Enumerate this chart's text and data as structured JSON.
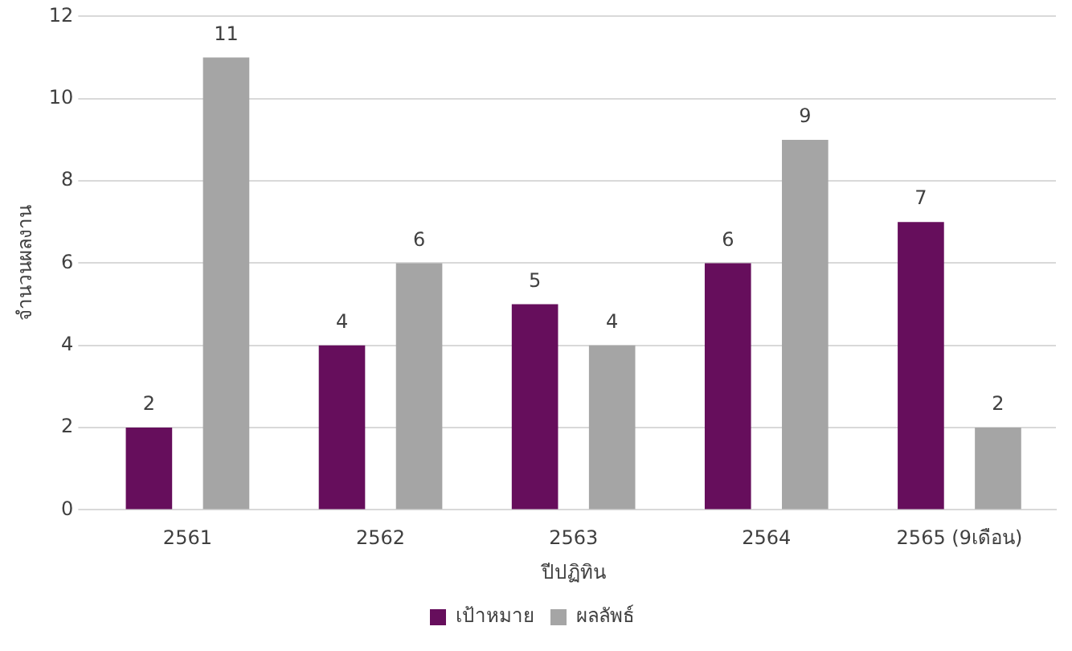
{
  "chart_data": {
    "type": "bar",
    "xlabel": "ปีปฏิทิน",
    "ylabel": "จำนวนผลงาน",
    "categories": [
      "2561",
      "2562",
      "2563",
      "2564",
      "2565 (9เดือน)"
    ],
    "series": [
      {
        "name": "เป้าหมาย",
        "color": "#660e5c",
        "values": [
          2,
          4,
          5,
          6,
          7
        ]
      },
      {
        "name": "ผลลัพธ์",
        "color": "#a5a5a5",
        "values": [
          11,
          6,
          4,
          9,
          2
        ]
      }
    ],
    "ylim": [
      0,
      12
    ],
    "yticks": [
      0,
      2,
      4,
      6,
      8,
      10,
      12
    ],
    "grid": "y",
    "legend": "bottom",
    "data_labels": true
  }
}
